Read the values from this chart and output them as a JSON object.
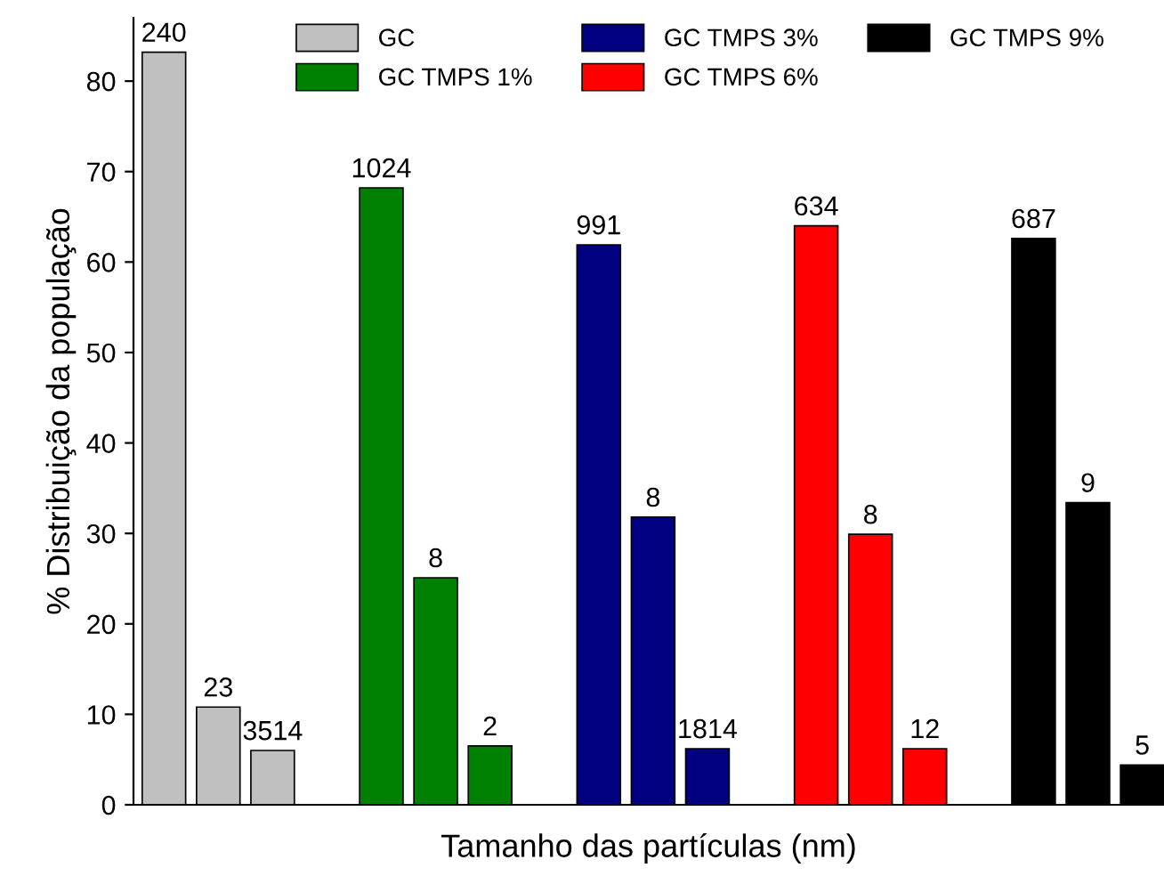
{
  "chart_data": {
    "type": "bar",
    "xlabel": "Tamanho das partículas (nm)",
    "ylabel": "% Distribuição da população",
    "categories": [
      null,
      null,
      null,
      null,
      null,
      null,
      null,
      null,
      null,
      null,
      null,
      null,
      null,
      null,
      null,
      null,
      null,
      null,
      null
    ],
    "series": [
      {
        "name": "GC",
        "color": "#c0c0c0",
        "values": [
          83.2,
          10.8,
          6.0,
          null,
          null,
          null,
          null,
          null,
          null,
          null,
          null,
          null,
          null,
          null,
          null,
          null,
          null,
          null,
          null
        ]
      },
      {
        "name": "GC TMPS 1%",
        "color": "#008000",
        "values": [
          null,
          null,
          null,
          null,
          68.2,
          25.1,
          6.5,
          null,
          null,
          null,
          null,
          null,
          null,
          null,
          null,
          null,
          null,
          null,
          null
        ]
      },
      {
        "name": "GC TMPS 3%",
        "color": "#000080",
        "values": [
          null,
          null,
          null,
          null,
          null,
          null,
          null,
          null,
          61.9,
          31.8,
          6.2,
          null,
          null,
          null,
          null,
          null,
          null,
          null,
          null
        ]
      },
      {
        "name": "GC TMPS 6%",
        "color": "#ff0000",
        "values": [
          null,
          null,
          null,
          null,
          null,
          null,
          null,
          null,
          null,
          null,
          null,
          null,
          64.0,
          29.9,
          6.2,
          null,
          null,
          null,
          null
        ]
      },
      {
        "name": "GC TMPS 9%",
        "color": "#000000",
        "values": [
          null,
          null,
          null,
          null,
          null,
          null,
          null,
          null,
          null,
          null,
          null,
          null,
          null,
          null,
          null,
          null,
          62.6,
          33.4,
          4.4
        ]
      }
    ],
    "annotations": [
      "240",
      "23",
      "3514",
      "1024",
      "8",
      "2",
      "991",
      "8",
      "1814",
      "634",
      "8",
      "12",
      "687",
      "9",
      "5"
    ],
    "ylim": [
      0,
      87
    ],
    "yticks": [
      0,
      10,
      20,
      30,
      40,
      50,
      60,
      70,
      80
    ],
    "grid": false,
    "legend": "top"
  }
}
